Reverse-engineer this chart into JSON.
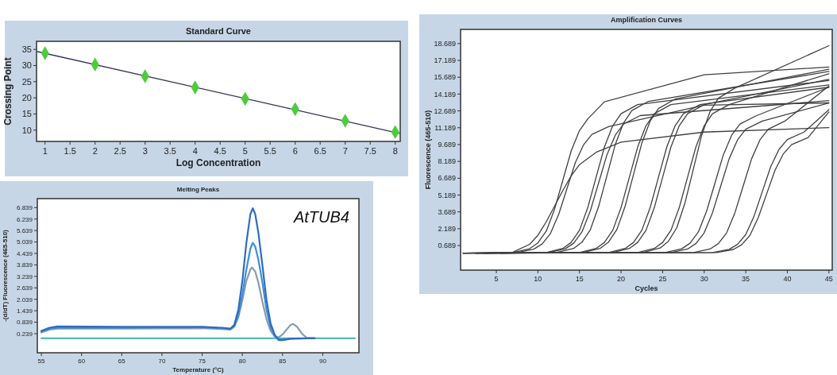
{
  "chart_data": [
    {
      "type": "scatter",
      "title": "Standard Curve",
      "xlabel": "Log Concentration",
      "ylabel": "Crossing Point",
      "xlim": [
        0.83,
        8.1
      ],
      "ylim": [
        6.5,
        37.5
      ],
      "xticks": [
        1,
        1.5,
        2,
        2.5,
        3,
        3.5,
        4,
        4.5,
        5,
        5.5,
        6,
        6.5,
        7,
        7.5,
        8
      ],
      "yticks": [
        10,
        15,
        20,
        25,
        30,
        35
      ],
      "series": [
        {
          "type": "line",
          "color": "#33335a",
          "x": [
            0.85,
            8.08
          ],
          "values": [
            34.3,
            9.0
          ]
        },
        {
          "color": "#4ccc3c",
          "marker": "diamond",
          "x": [
            1,
            2,
            3,
            4,
            5,
            6,
            7,
            8
          ],
          "values": [
            33.8,
            30.3,
            26.7,
            23.2,
            19.7,
            16.5,
            12.9,
            9.4
          ]
        }
      ]
    },
    {
      "type": "line",
      "title": "Amplification Curves",
      "xlabel": "Cycles",
      "ylabel": "Fluorescence (465-510)",
      "xlim": [
        0.7,
        45.4
      ],
      "ylim": [
        -1.5,
        19.95
      ],
      "xticks": [
        5,
        10,
        15,
        20,
        25,
        30,
        35,
        40,
        45
      ],
      "yticks": [
        0.689,
        2.189,
        3.689,
        5.189,
        6.689,
        8.189,
        9.689,
        11.189,
        12.689,
        14.189,
        15.689,
        17.189,
        18.689
      ],
      "series": [
        {
          "color": "#404040",
          "x": [
            1,
            7,
            9,
            10,
            11,
            12,
            13,
            14,
            15,
            16,
            18,
            30,
            45
          ],
          "values": [
            0.02,
            0.07,
            0.41,
            0.93,
            1.97,
            3.92,
            6.52,
            9.12,
            10.94,
            11.98,
            13.5,
            15.9,
            16.6
          ]
        },
        {
          "color": "#404040",
          "x": [
            3.5,
            7.5,
            9.5,
            10.5,
            11.5,
            12.5,
            13.5,
            14.5,
            15.5,
            16.5,
            18.5,
            30,
            45
          ],
          "values": [
            0.02,
            0.07,
            0.37,
            0.83,
            1.75,
            3.47,
            5.77,
            8.07,
            9.68,
            10.6,
            11.29,
            13.2,
            13.4
          ]
        },
        {
          "color": "#404040",
          "x": [
            1,
            7,
            9,
            10,
            11,
            12,
            13,
            14,
            15,
            17,
            20,
            30,
            45
          ],
          "values": [
            0.02,
            0.1,
            0.8,
            1.6,
            2.8,
            4.2,
            5.6,
            6.9,
            7.9,
            9.0,
            9.9,
            10.8,
            11.2
          ]
        },
        {
          "color": "#404040",
          "x": [
            5.5,
            11,
            13,
            14,
            15,
            16,
            17,
            18,
            19,
            20,
            22,
            45
          ],
          "values": [
            0.02,
            0.07,
            0.43,
            0.97,
            2.05,
            4.07,
            6.77,
            9.47,
            11.36,
            12.44,
            13.25,
            15.4
          ]
        },
        {
          "color": "#404040",
          "x": [
            2.5,
            11.3,
            13.3,
            14.3,
            15.3,
            16.3,
            17.3,
            18.3,
            19.3,
            20.3,
            22.3,
            45
          ],
          "values": [
            0.02,
            0.07,
            0.4,
            0.9,
            1.9,
            3.77,
            6.27,
            8.77,
            10.52,
            11.52,
            12.27,
            13.6
          ]
        },
        {
          "color": "#404040",
          "x": [
            5.5,
            12.3,
            14.3,
            15.3,
            16.3,
            17.3,
            18.3,
            19.3,
            20.3,
            21.3,
            23.3,
            45
          ],
          "values": [
            0.02,
            0.08,
            0.43,
            0.99,
            2.09,
            4.16,
            6.92,
            9.68,
            11.61,
            12.72,
            13.54,
            16.2
          ]
        },
        {
          "color": "#404040",
          "x": [
            1,
            15,
            17,
            18,
            19,
            20,
            21,
            22,
            23,
            24,
            26,
            45
          ],
          "values": [
            0.02,
            0.07,
            0.43,
            0.97,
            2.05,
            4.07,
            6.77,
            9.47,
            11.36,
            12.44,
            13.25,
            15.0
          ]
        },
        {
          "color": "#404040",
          "x": [
            3.5,
            15.5,
            17.5,
            18.5,
            19.5,
            20.5,
            21.5,
            22.5,
            23.5,
            24.5,
            26.5,
            45
          ],
          "values": [
            0.02,
            0.08,
            0.44,
            1.0,
            2.12,
            4.22,
            7.02,
            9.82,
            11.78,
            12.9,
            13.74,
            16.4
          ]
        },
        {
          "color": "#404040",
          "x": [
            2.5,
            18.5,
            20.5,
            21.5,
            22.5,
            23.5,
            24.5,
            25.5,
            26.5,
            27.5,
            29.5,
            45
          ],
          "values": [
            0.02,
            0.07,
            0.43,
            0.97,
            2.05,
            4.07,
            6.77,
            9.47,
            11.36,
            12.44,
            13.25,
            14.8
          ]
        },
        {
          "color": "#404040",
          "x": [
            2.5,
            19,
            21,
            22,
            23,
            24,
            25,
            26,
            27,
            28,
            30,
            45
          ],
          "values": [
            0.02,
            0.07,
            0.43,
            0.97,
            2.05,
            4.07,
            6.77,
            9.47,
            11.36,
            12.44,
            13.25,
            15.5
          ]
        },
        {
          "color": "#404040",
          "x": [
            2.5,
            22,
            24,
            25,
            26,
            27,
            28,
            29,
            30,
            31,
            33,
            45
          ],
          "values": [
            0.02,
            0.07,
            0.43,
            0.97,
            2.05,
            4.07,
            6.77,
            9.47,
            11.36,
            12.44,
            13.25,
            16.0
          ]
        },
        {
          "color": "#404040",
          "x": [
            3.5,
            22.7,
            24.7,
            25.7,
            26.7,
            27.7,
            28.7,
            29.7,
            30.7,
            31.7,
            33.7,
            45
          ],
          "values": [
            0.02,
            0.08,
            0.47,
            1.07,
            2.27,
            4.52,
            7.52,
            10.52,
            12.62,
            13.82,
            14.72,
            18.5
          ]
        },
        {
          "color": "#404040",
          "x": [
            3.5,
            25.3,
            27.3,
            28.3,
            29.3,
            30.3,
            31.3,
            32.3,
            33.3,
            34.3,
            36.3,
            45
          ],
          "values": [
            0.02,
            0.07,
            0.4,
            0.9,
            1.9,
            3.77,
            6.27,
            8.77,
            10.52,
            11.52,
            12.27,
            14.8
          ]
        },
        {
          "color": "#404040",
          "x": [
            1,
            26,
            28,
            29,
            30,
            31,
            32,
            33,
            34,
            35,
            37,
            45
          ],
          "values": [
            0.02,
            0.07,
            0.38,
            0.86,
            1.82,
            3.62,
            6.02,
            8.42,
            10.1,
            11.06,
            11.78,
            13.4
          ]
        },
        {
          "color": "#404040",
          "x": [
            5.5,
            28.7,
            30.7,
            31.7,
            32.7,
            33.7,
            34.7,
            35.7,
            36.7,
            37.7,
            39.7,
            45
          ],
          "values": [
            0.02,
            0.07,
            0.38,
            0.86,
            1.82,
            3.62,
            6.02,
            8.42,
            10.1,
            11.06,
            11.78,
            14.9
          ]
        },
        {
          "color": "#404040",
          "x": [
            1,
            31,
            33,
            34,
            35,
            36,
            37,
            38,
            39,
            40,
            42,
            45
          ],
          "values": [
            0.02,
            0.06,
            0.35,
            0.79,
            1.67,
            3.32,
            5.52,
            7.72,
            9.26,
            10.14,
            10.8,
            12.8
          ]
        },
        {
          "color": "#404040",
          "x": [
            2.5,
            31.5,
            33.5,
            34.5,
            35.5,
            36.5,
            37.5,
            38.5,
            39.5,
            40.5,
            42.5,
            45
          ],
          "values": [
            0.02,
            0.06,
            0.34,
            0.76,
            1.6,
            3.17,
            5.27,
            7.37,
            8.84,
            9.68,
            10.31,
            12.6
          ]
        }
      ]
    },
    {
      "type": "line",
      "title": "Melting Peaks",
      "xlabel": "Temperature (°C)",
      "ylabel": "-(d/dT) Fluorescence (465-510)",
      "annotations": [
        "AtTUB4"
      ],
      "xlim": [
        54.5,
        94.5
      ],
      "ylim": [
        -0.76,
        7.31
      ],
      "xticks": [
        55,
        60,
        65,
        70,
        75,
        80,
        85,
        90
      ],
      "yticks": [
        0.239,
        0.839,
        1.439,
        2.039,
        2.639,
        3.239,
        3.839,
        4.439,
        5.039,
        5.639,
        6.239,
        6.839
      ],
      "series": [
        {
          "color": "#3cb8a8",
          "x": [
            55,
            94
          ],
          "values": [
            0.0,
            0.0
          ]
        },
        {
          "color": "#8a9aae",
          "x": [
            55,
            56,
            57,
            65,
            75,
            77.5,
            78.5,
            79,
            79.5,
            80,
            80.5,
            81,
            81.2,
            81.6,
            82,
            82.5,
            83,
            83.5,
            84,
            84.5,
            85,
            85.5,
            86,
            86.3,
            86.8,
            87.5,
            88,
            89
          ],
          "values": [
            0.3,
            0.45,
            0.5,
            0.5,
            0.52,
            0.48,
            0.45,
            0.6,
            1.1,
            2.0,
            3.0,
            3.6,
            3.7,
            3.5,
            2.9,
            1.9,
            1.0,
            0.4,
            0.1,
            0.05,
            0.2,
            0.45,
            0.7,
            0.75,
            0.6,
            0.2,
            0.03,
            0.0
          ]
        },
        {
          "color": "#3a8fd8",
          "x": [
            55,
            56,
            57,
            65,
            75,
            77.5,
            78.5,
            79,
            79.5,
            80,
            80.5,
            81,
            81.3,
            81.6,
            82,
            82.5,
            83,
            83.5,
            84,
            84.5,
            85,
            86,
            89
          ],
          "values": [
            0.35,
            0.5,
            0.55,
            0.55,
            0.58,
            0.52,
            0.48,
            0.65,
            1.2,
            2.3,
            3.6,
            4.7,
            5.0,
            4.8,
            4.1,
            2.9,
            1.5,
            0.6,
            0.15,
            -0.05,
            -0.08,
            -0.02,
            0.0
          ]
        },
        {
          "color": "#2e6cc0",
          "x": [
            55,
            56,
            57,
            65,
            75,
            77.5,
            78.5,
            79,
            79.5,
            80,
            80.5,
            81,
            81.3,
            81.6,
            82,
            82.5,
            83,
            83.5,
            84,
            84.5,
            85,
            86,
            89
          ],
          "values": [
            0.38,
            0.55,
            0.62,
            0.6,
            0.6,
            0.55,
            0.5,
            0.7,
            1.5,
            3.0,
            5.0,
            6.5,
            6.8,
            6.5,
            5.5,
            3.8,
            2.0,
            0.8,
            0.2,
            -0.1,
            -0.1,
            -0.03,
            0.0
          ]
        }
      ]
    }
  ]
}
